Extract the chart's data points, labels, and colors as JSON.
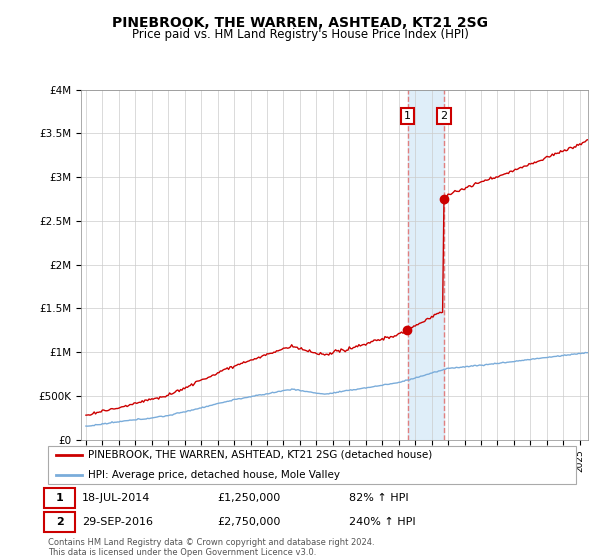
{
  "title": "PINEBROOK, THE WARREN, ASHTEAD, KT21 2SG",
  "subtitle": "Price paid vs. HM Land Registry's House Price Index (HPI)",
  "legend_line1": "PINEBROOK, THE WARREN, ASHTEAD, KT21 2SG (detached house)",
  "legend_line2": "HPI: Average price, detached house, Mole Valley",
  "annotation1_label": "1",
  "annotation1_date": "18-JUL-2014",
  "annotation1_price": "£1,250,000",
  "annotation1_hpi": "82% ↑ HPI",
  "annotation2_label": "2",
  "annotation2_date": "29-SEP-2016",
  "annotation2_price": "£2,750,000",
  "annotation2_hpi": "240% ↑ HPI",
  "footer": "Contains HM Land Registry data © Crown copyright and database right 2024.\nThis data is licensed under the Open Government Licence v3.0.",
  "sale1_year": 2014.54,
  "sale2_year": 2016.75,
  "sale1_price": 1250000,
  "sale2_price": 2750000,
  "red_color": "#cc0000",
  "blue_color": "#7aacda",
  "vline_color": "#e08080",
  "shade_color": "#d8eaf8",
  "ylim": [
    0,
    4000000
  ],
  "xlim_start": 1994.7,
  "xlim_end": 2025.5,
  "yticks": [
    0,
    500000,
    1000000,
    1500000,
    2000000,
    2500000,
    3000000,
    3500000,
    4000000
  ],
  "ylabels": [
    "£0",
    "£500K",
    "£1M",
    "£1.5M",
    "£2M",
    "£2.5M",
    "£3M",
    "£3.5M",
    "£4M"
  ]
}
